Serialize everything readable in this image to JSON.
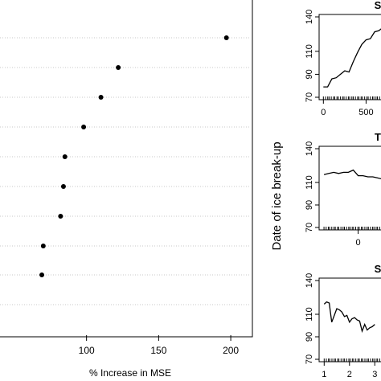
{
  "chart_data": [
    {
      "type": "scatter",
      "title": "",
      "xlabel": "% Increase in MSE",
      "ylabel": "",
      "xlim": [
        40,
        215
      ],
      "xticks": [
        100,
        150,
        200
      ],
      "grid": "horizontal dotted",
      "values": [
        197,
        122,
        110,
        98,
        85,
        84,
        82,
        70,
        69
      ]
    },
    {
      "type": "line",
      "title": "S",
      "ylabel": "",
      "ylim": [
        70,
        140
      ],
      "yticks": [
        70,
        90,
        110,
        140
      ],
      "xlim": [
        -50,
        750
      ],
      "xticks": [
        0,
        500
      ],
      "x": [
        0,
        50,
        100,
        150,
        200,
        250,
        300,
        350,
        400,
        450,
        500,
        550,
        600,
        650,
        700,
        750
      ],
      "y": [
        79,
        79,
        86,
        87,
        90,
        93,
        92,
        101,
        109,
        116,
        120,
        121,
        127,
        128,
        131,
        131
      ]
    },
    {
      "type": "line",
      "title": "T",
      "ylabel": "Date of ice break-up",
      "ylim": [
        70,
        140
      ],
      "yticks": [
        70,
        90,
        110,
        140
      ],
      "xlim": [
        -0.8,
        0.6
      ],
      "xticks": [
        0
      ],
      "x": [
        -0.7,
        -0.6,
        -0.5,
        -0.4,
        -0.3,
        -0.2,
        -0.1,
        0.0,
        0.1,
        0.2,
        0.3,
        0.4,
        0.5,
        0.6
      ],
      "y": [
        117,
        118,
        119,
        118,
        119,
        119,
        121,
        116,
        116,
        115,
        115,
        114,
        113,
        112
      ]
    },
    {
      "type": "line",
      "title": "S",
      "ylabel": "",
      "ylim": [
        70,
        140
      ],
      "yticks": [
        70,
        90,
        110,
        140
      ],
      "xlim": [
        0.8,
        3.5
      ],
      "xticks": [
        1,
        2,
        3
      ],
      "x": [
        1.0,
        1.1,
        1.2,
        1.3,
        1.4,
        1.5,
        1.6,
        1.7,
        1.8,
        1.9,
        2.0,
        2.1,
        2.2,
        2.3,
        2.4,
        2.5,
        2.6,
        2.7,
        2.8,
        2.9,
        3.0
      ],
      "y": [
        119,
        121,
        120,
        103,
        109,
        115,
        114,
        112,
        108,
        109,
        103,
        106,
        107,
        105,
        104,
        95,
        101,
        96,
        98,
        99,
        101
      ]
    }
  ]
}
